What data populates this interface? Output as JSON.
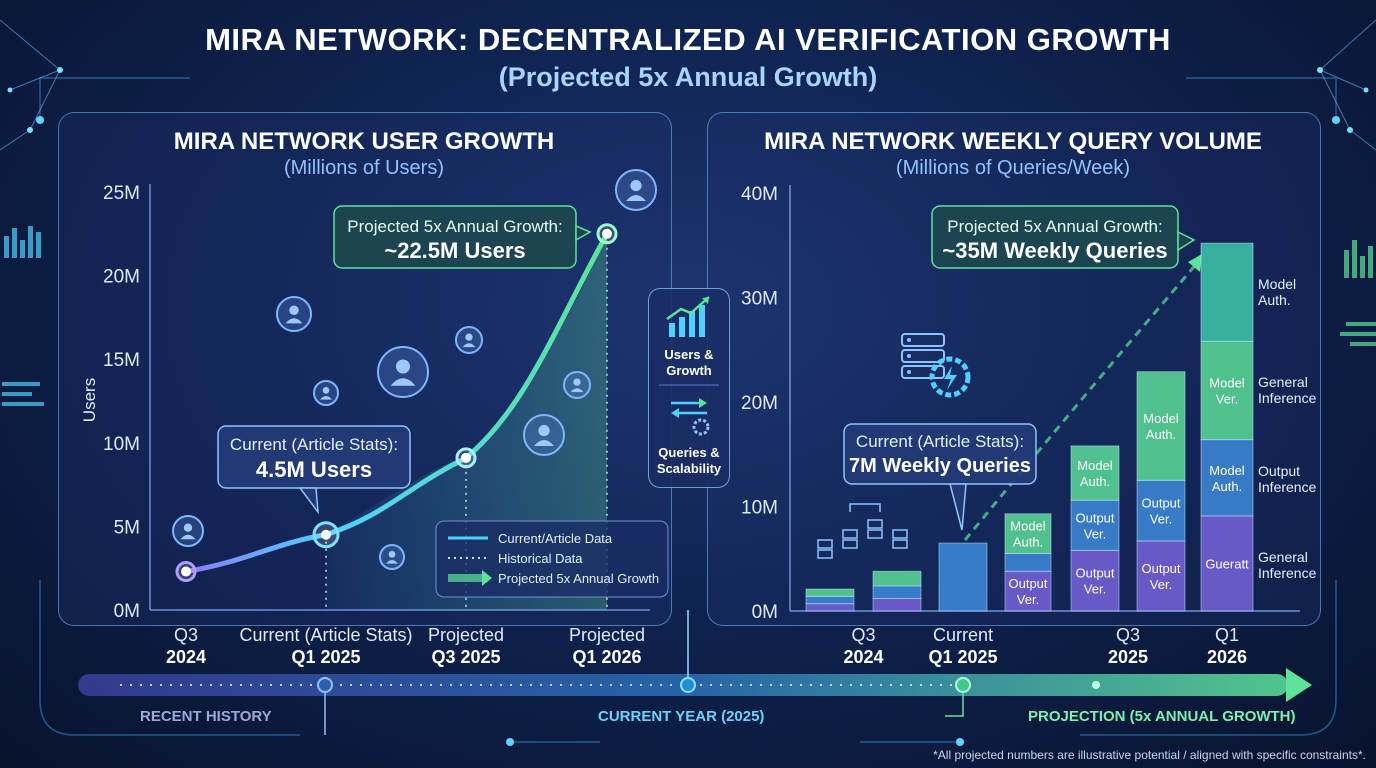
{
  "header": {
    "title": "MIRA NETWORK: DECENTRALIZED AI VERIFICATION GROWTH",
    "subtitle": "(Projected 5x Annual Growth)"
  },
  "colors": {
    "accent_cyan": "#4fd1ff",
    "accent_green": "#5ee39a",
    "accent_purple": "#8c7bff",
    "panel_border": "#78beff"
  },
  "chart_data": [
    {
      "type": "line",
      "title": "MIRA NETWORK USER GROWTH",
      "subtitle": "(Millions of Users)",
      "ylabel": "Users",
      "ylim": [
        0,
        25
      ],
      "yticks": [
        "25M",
        "20M",
        "15M",
        "10M",
        "5M",
        "0M"
      ],
      "ytick_values": [
        25,
        20,
        15,
        10,
        5,
        0
      ],
      "categories": [
        {
          "line1": "Q3",
          "line2": "2024"
        },
        {
          "line1": "Current (Article Stats)",
          "line2": "Q1 2025"
        },
        {
          "line1": "Projected",
          "line2": "Q3 2025"
        },
        {
          "line1": "Projected",
          "line2": "Q1 2026"
        }
      ],
      "series": [
        {
          "values": [
            2.3,
            4.5,
            9.1,
            22.5
          ]
        }
      ],
      "callouts": [
        {
          "label": "Current (Article Stats):",
          "value": "4.5M Users"
        },
        {
          "label": "Projected 5x Annual Growth:",
          "value": "~22.5M Users"
        }
      ],
      "legend": {
        "placement": "bottom-right",
        "entries": [
          "Current/Article Data",
          "Historical Data",
          "Projected 5x Annual Growth"
        ]
      },
      "icons": [
        "user-icon"
      ]
    },
    {
      "type": "bar",
      "stacked": true,
      "title": "MIRA NETWORK WEEKLY QUERY VOLUME",
      "subtitle": "(Millions of Queries/Week)",
      "ylim": [
        0,
        40
      ],
      "yticks": [
        "40M",
        "30M",
        "20M",
        "10M",
        "0M"
      ],
      "ytick_values": [
        40,
        30,
        20,
        10,
        0
      ],
      "x_labels": [
        {
          "line1": "Q3",
          "line2": "2024",
          "bar_index": 0.5
        },
        {
          "line1": "Current",
          "line2": "Q1 2025",
          "bar_index": 2
        },
        {
          "line1": "Q3",
          "line2": "2025",
          "bar_index": 4.5
        },
        {
          "line1": "Q1",
          "line2": "2026",
          "bar_index": 6
        }
      ],
      "bars": [
        {
          "segments": [
            {
              "value": 0.7
            },
            {
              "value": 0.7
            },
            {
              "value": 0.7
            }
          ]
        },
        {
          "segments": [
            {
              "value": 1.2
            },
            {
              "value": 1.2
            },
            {
              "value": 1.4
            }
          ]
        },
        {
          "segments": [
            {
              "value": 6.5
            }
          ]
        },
        {
          "segments": [
            {
              "value": 3.8,
              "label": "Output Ver."
            },
            {
              "value": 1.7
            },
            {
              "value": 3.8,
              "label": "Model Auth."
            }
          ]
        },
        {
          "segments": [
            {
              "value": 5.8,
              "label": "Output Ver."
            },
            {
              "value": 4.8,
              "label": "Output Ver."
            },
            {
              "value": 5.2,
              "label": "Model Auth."
            }
          ]
        },
        {
          "segments": [
            {
              "value": 6.7,
              "label": "Output Ver."
            },
            {
              "value": 5.8,
              "label": "Output Ver."
            },
            {
              "value": 10.4,
              "label": "Model Auth."
            }
          ]
        },
        {
          "segments": [
            {
              "value": 9.1,
              "label": "Gueratt"
            },
            {
              "value": 7.3,
              "label": "Model Auth."
            },
            {
              "value": 9.4,
              "label": "Model Ver."
            },
            {
              "value": 9.4
            }
          ]
        }
      ],
      "side_labels": [
        "Model Auth.",
        "General Inference",
        "Output Inference",
        "General Inference"
      ],
      "callouts": [
        {
          "label": "Current (Article Stats):",
          "value": "7M Weekly Queries"
        },
        {
          "label": "Projected 5x Annual Growth:",
          "value": "~35M Weekly Queries"
        }
      ]
    }
  ],
  "side_badge": {
    "top_label_1": "Users &",
    "top_label_2": "Growth",
    "bottom_label_1": "Queries &",
    "bottom_label_2": "Scalability"
  },
  "timeline": {
    "segments": [
      "RECENT HISTORY",
      "CURRENT YEAR (2025)",
      "PROJECTION (5x ANNUAL GROWTH)"
    ]
  },
  "footnote": "*All projected numbers are illustrative potential / aligned with specific constraints*."
}
